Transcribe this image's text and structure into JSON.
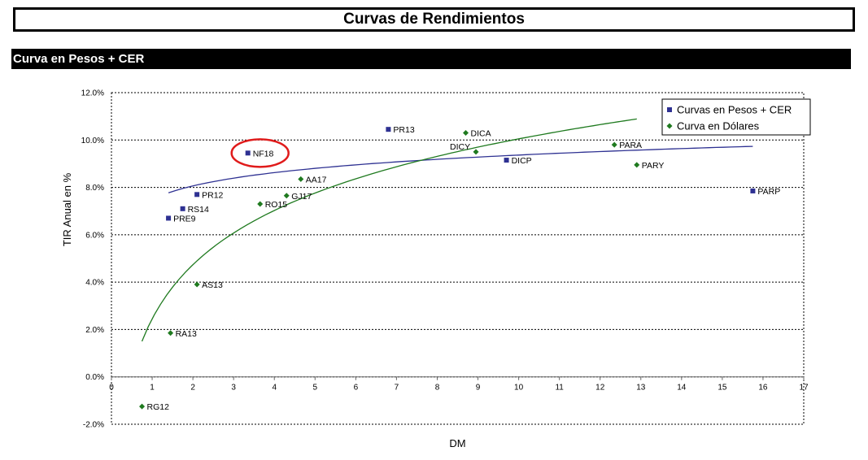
{
  "header": {
    "title": "Curvas de Rendimientos"
  },
  "section": {
    "title": "Curva en Pesos + CER"
  },
  "colors": {
    "pesos": "#2e3192",
    "dolares": "#1f7a1f",
    "highlight": "#e01b1b",
    "gridline": "#000000"
  },
  "chart_data": {
    "type": "scatter",
    "xlabel": "DM",
    "ylabel": "TIR Anual en %",
    "xlim": [
      0,
      17
    ],
    "ylim": [
      -2.0,
      12.0
    ],
    "x_ticks": [
      "0",
      "1",
      "2",
      "3",
      "4",
      "5",
      "6",
      "7",
      "8",
      "9",
      "10",
      "11",
      "12",
      "13",
      "14",
      "15",
      "16",
      "17"
    ],
    "y_ticks": [
      "-2.0%",
      "0.0%",
      "2.0%",
      "4.0%",
      "6.0%",
      "8.0%",
      "10.0%",
      "12.0%"
    ],
    "y_tick_values": [
      -2,
      0,
      2,
      4,
      6,
      8,
      10,
      12
    ],
    "grid": "horizontal dotted",
    "legend_position": "top-right",
    "series": [
      {
        "name": "Curvas en Pesos + CER",
        "marker": "square",
        "points": [
          {
            "label": "PR13",
            "x": 6.8,
            "y": 10.45
          },
          {
            "label": "NF18",
            "x": 3.35,
            "y": 9.45
          },
          {
            "label": "DICP",
            "x": 9.7,
            "y": 9.15
          },
          {
            "label": "PR12",
            "x": 2.1,
            "y": 7.7
          },
          {
            "label": "RS14",
            "x": 1.75,
            "y": 7.1
          },
          {
            "label": "PRE9",
            "x": 1.4,
            "y": 6.7
          },
          {
            "label": "PARP",
            "x": 15.75,
            "y": 7.85
          }
        ],
        "trendline": {
          "type": "logarithmic",
          "a": 7.5,
          "b": 0.81,
          "x_range": [
            1.4,
            15.75
          ]
        }
      },
      {
        "name": "Curva en Dólares",
        "marker": "diamond",
        "points": [
          {
            "label": "DICA",
            "x": 8.7,
            "y": 10.3
          },
          {
            "label": "DICY",
            "x": 8.95,
            "y": 9.5
          },
          {
            "label": "PARA",
            "x": 12.35,
            "y": 9.8
          },
          {
            "label": "PARY",
            "x": 12.9,
            "y": 8.95
          },
          {
            "label": "AA17",
            "x": 4.65,
            "y": 8.35
          },
          {
            "label": "GJ17",
            "x": 4.3,
            "y": 7.65
          },
          {
            "label": "RO15",
            "x": 3.65,
            "y": 7.3
          },
          {
            "label": "AS13",
            "x": 2.1,
            "y": 3.9
          },
          {
            "label": "RA13",
            "x": 1.45,
            "y": 1.85
          },
          {
            "label": "RG12",
            "x": 0.75,
            "y": -1.25
          }
        ],
        "trendline": {
          "type": "logarithmic",
          "a": 2.45,
          "b": 3.3,
          "x_range": [
            0.75,
            12.9
          ]
        }
      }
    ],
    "highlight": {
      "label": "NF18"
    }
  }
}
